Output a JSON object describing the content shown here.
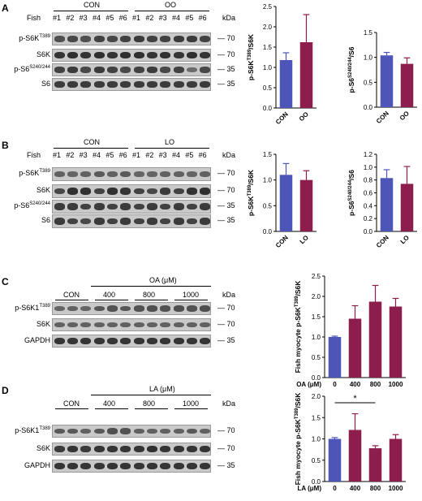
{
  "colors": {
    "con": "#4e55b8",
    "treat": "#8c1d4c"
  },
  "panels": [
    {
      "id": "A",
      "fish_label": "Fish",
      "group1": "CON",
      "group2": "OO",
      "lanes": [
        "#1",
        "#2",
        "#3",
        "#4",
        "#5",
        "#6",
        "#1",
        "#2",
        "#3",
        "#4",
        "#5",
        "#6"
      ],
      "kda_label": "kDa",
      "rows": [
        {
          "label": "p-S6K",
          "sup": "T389",
          "kda": "70"
        },
        {
          "label": "S6K",
          "sup": "",
          "kda": "70"
        },
        {
          "label": "p-S6",
          "sup": "S240/244",
          "kda": "35"
        },
        {
          "label": "S6",
          "sup": "",
          "kda": "35"
        }
      ],
      "bands": [
        [
          0.7,
          0.75,
          0.7,
          0.8,
          0.75,
          0.8,
          0.85,
          0.8,
          0.8,
          0.85,
          0.85,
          0.8
        ],
        [
          0.9,
          0.95,
          0.9,
          0.95,
          0.9,
          0.95,
          0.95,
          0.9,
          0.95,
          0.9,
          0.95,
          0.9
        ],
        [
          0.8,
          0.85,
          0.75,
          0.85,
          0.8,
          0.75,
          0.8,
          0.85,
          0.75,
          0.8,
          0.45,
          0.75
        ],
        [
          0.85,
          0.85,
          0.85,
          0.85,
          0.85,
          0.85,
          0.85,
          0.85,
          0.85,
          0.85,
          0.85,
          0.85
        ]
      ]
    },
    {
      "id": "B",
      "fish_label": "Fish",
      "group1": "CON",
      "group2": "LO",
      "lanes": [
        "#1",
        "#2",
        "#3",
        "#4",
        "#5",
        "#6",
        "#1",
        "#2",
        "#3",
        "#4",
        "#5",
        "#6"
      ],
      "kda_label": "kDa",
      "rows": [
        {
          "label": "p-S6K",
          "sup": "T389",
          "kda": "70"
        },
        {
          "label": "S6K",
          "sup": "",
          "kda": "70"
        },
        {
          "label": "p-S6",
          "sup": "S240/244",
          "kda": "35"
        },
        {
          "label": "S6",
          "sup": "",
          "kda": "35"
        }
      ],
      "bands": [
        [
          0.55,
          0.5,
          0.55,
          0.6,
          0.55,
          0.6,
          0.5,
          0.5,
          0.55,
          0.55,
          0.5,
          0.55
        ],
        [
          0.75,
          0.95,
          0.95,
          0.8,
          0.95,
          0.9,
          0.8,
          0.75,
          0.85,
          0.8,
          0.95,
          0.95
        ],
        [
          0.85,
          0.85,
          0.8,
          0.85,
          0.8,
          0.85,
          0.8,
          0.85,
          0.8,
          0.85,
          0.8,
          0.85
        ],
        [
          0.85,
          0.8,
          0.75,
          0.85,
          0.8,
          0.85,
          0.8,
          0.85,
          0.8,
          0.85,
          0.8,
          0.85
        ]
      ]
    },
    {
      "id": "C",
      "group_title": "OA (μM)",
      "groups": [
        "CON",
        "400",
        "800",
        "1000"
      ],
      "kda_label": "kDa",
      "rows": [
        {
          "label": "p-S6K1",
          "sup": "T389",
          "kda": "70"
        },
        {
          "label": "S6K",
          "sup": "",
          "kda": "70"
        },
        {
          "label": "GAPDH",
          "sup": "",
          "kda": "35"
        }
      ],
      "bands": [
        [
          0.5,
          0.55,
          0.5,
          0.6,
          0.65,
          0.6,
          0.65,
          0.7,
          0.65,
          0.7,
          0.65,
          0.7
        ],
        [
          0.55,
          0.55,
          0.55,
          0.55,
          0.55,
          0.55,
          0.55,
          0.55,
          0.55,
          0.55,
          0.55,
          0.55
        ],
        [
          0.9,
          0.9,
          0.9,
          0.9,
          0.9,
          0.9,
          0.9,
          0.9,
          0.9,
          0.9,
          0.9,
          0.9
        ]
      ]
    },
    {
      "id": "D",
      "group_title": "LA (μM)",
      "groups": [
        "CON",
        "400",
        "800",
        "1000"
      ],
      "kda_label": "kDa",
      "rows": [
        {
          "label": "p-S6K1",
          "sup": "T389",
          "kda": "70"
        },
        {
          "label": "S6K",
          "sup": "",
          "kda": "70"
        },
        {
          "label": "GAPDH",
          "sup": "",
          "kda": "35"
        }
      ],
      "bands": [
        [
          0.6,
          0.6,
          0.55,
          0.6,
          0.7,
          0.65,
          0.55,
          0.55,
          0.55,
          0.55,
          0.6,
          0.55
        ],
        [
          0.85,
          0.9,
          0.85,
          0.9,
          0.9,
          0.9,
          0.9,
          0.95,
          0.9,
          0.9,
          0.9,
          0.9
        ],
        [
          0.9,
          0.9,
          0.9,
          0.9,
          0.9,
          0.9,
          0.9,
          0.9,
          0.9,
          0.9,
          0.9,
          0.9
        ]
      ]
    }
  ],
  "chart_data": [
    {
      "type": "bar",
      "panel": "A",
      "categories": [
        "CON",
        "OO"
      ],
      "values": [
        1.18,
        1.62
      ],
      "errors": [
        0.18,
        0.68
      ],
      "ylabel_main": "p-S6K",
      "ylabel_sup": "T389",
      "ylabel_tail": "/S6K",
      "ylim": [
        0,
        2.5
      ],
      "ticks": [
        "0.0",
        "0.5",
        "1.0",
        "1.5",
        "2.0",
        "2.5"
      ],
      "xlabel": ""
    },
    {
      "type": "bar",
      "panel": "A",
      "categories": [
        "CON",
        "OO"
      ],
      "values": [
        1.04,
        0.87
      ],
      "errors": [
        0.06,
        0.12
      ],
      "ylabel_main": "p-S6",
      "ylabel_sup": "S240/244",
      "ylabel_tail": "/S6",
      "ylim": [
        0,
        1.5
      ],
      "ticks": [
        "0.0",
        "0.5",
        "1.0",
        "1.5"
      ],
      "xlabel": ""
    },
    {
      "type": "bar",
      "panel": "B",
      "categories": [
        "CON",
        "LO"
      ],
      "values": [
        1.1,
        1.0
      ],
      "errors": [
        0.22,
        0.18
      ],
      "ylabel_main": "p-S6K",
      "ylabel_sup": "T389",
      "ylabel_tail": "/S6K",
      "ylim": [
        0,
        1.5
      ],
      "ticks": [
        "0.0",
        "0.5",
        "1.0",
        "1.5"
      ],
      "xlabel": ""
    },
    {
      "type": "bar",
      "panel": "B",
      "categories": [
        "CON",
        "LO"
      ],
      "values": [
        0.83,
        0.74
      ],
      "errors": [
        0.13,
        0.27
      ],
      "ylabel_main": "p-S6",
      "ylabel_sup": "S240/244",
      "ylabel_tail": "/S6",
      "ylim": [
        0,
        1.2
      ],
      "ticks": [
        "0.0",
        "0.2",
        "0.4",
        "0.6",
        "0.8",
        "1.0",
        "1.2"
      ],
      "xlabel": ""
    },
    {
      "type": "bar",
      "panel": "C",
      "categories": [
        "0",
        "400",
        "800",
        "1000"
      ],
      "values": [
        1.0,
        1.45,
        1.87,
        1.75
      ],
      "errors": [
        0.02,
        0.32,
        0.4,
        0.2
      ],
      "ylabel_main": "Fish myocyte p-S6K",
      "ylabel_sup": "T389",
      "ylabel_tail": "/S6K",
      "ylim": [
        0,
        2.5
      ],
      "ticks": [
        "0.0",
        "0.5",
        "1.0",
        "1.5",
        "2.0",
        "2.5"
      ],
      "xlabel": "OA (μM)"
    },
    {
      "type": "bar",
      "panel": "D",
      "categories": [
        "0",
        "400",
        "800",
        "1000"
      ],
      "values": [
        1.0,
        1.21,
        0.78,
        1.0
      ],
      "errors": [
        0.03,
        0.38,
        0.06,
        0.1
      ],
      "ylabel_main": "Fish myocyte p-S6K",
      "ylabel_sup": "T389",
      "ylabel_tail": "/S6K",
      "ylim": [
        0,
        2.0
      ],
      "ticks": [
        "0.0",
        "0.5",
        "1.0",
        "1.5",
        "2.0"
      ],
      "xlabel": "LA (μM)",
      "significance": {
        "from": 0,
        "to": 2,
        "label": "*"
      }
    }
  ]
}
